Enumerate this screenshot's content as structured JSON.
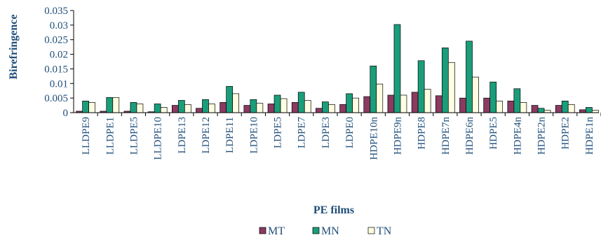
{
  "chart_data": {
    "type": "bar",
    "xlabel": "PE films",
    "ylabel": "Birefringence",
    "ylim": [
      0,
      0.035
    ],
    "yticks": [
      0,
      0.005,
      0.01,
      0.015,
      0.02,
      0.025,
      0.03,
      0.035
    ],
    "ytick_labels": [
      "0",
      "0.005",
      "0.01",
      "0.015",
      "0.02",
      "0.025",
      "0.03",
      "0.035"
    ],
    "grid": false,
    "legend_position": "bottom",
    "categories": [
      "LLDPE9",
      "LLDPE1",
      "LLDPE5",
      "LLDPE10",
      "LDPE13",
      "LDPE12",
      "LDPE11",
      "LDPE10",
      "LDPE5",
      "LDPE7",
      "LDPE3",
      "LDPE0",
      "HDPE10n",
      "HDPE9n",
      "HDPE8",
      "HDPE7n",
      "HDPE6n",
      "HDPE5",
      "HDPE4n",
      "HDPE2n",
      "HDPE2",
      "HDPE1n"
    ],
    "series": [
      {
        "name": "MT",
        "color": "#8b3a62",
        "values": [
          0.0005,
          0.0005,
          0.0005,
          0.0003,
          0.0025,
          0.0015,
          0.0035,
          0.0025,
          0.003,
          0.0035,
          0.0015,
          0.0028,
          0.0055,
          0.006,
          0.007,
          0.0058,
          0.005,
          0.005,
          0.004,
          0.0025,
          0.0025,
          0.001
        ]
      },
      {
        "name": "MN",
        "color": "#1a9e7a",
        "values": [
          0.004,
          0.0052,
          0.0035,
          0.003,
          0.0042,
          0.0045,
          0.009,
          0.0045,
          0.006,
          0.007,
          0.0037,
          0.0065,
          0.016,
          0.0302,
          0.0178,
          0.0222,
          0.0245,
          0.0105,
          0.0082,
          0.0015,
          0.004,
          0.0018
        ]
      },
      {
        "name": "TN",
        "color": "#fffde0",
        "values": [
          0.0035,
          0.0052,
          0.003,
          0.0018,
          0.0028,
          0.003,
          0.0065,
          0.0032,
          0.0048,
          0.0042,
          0.0028,
          0.005,
          0.0098,
          0.006,
          0.008,
          0.0172,
          0.0122,
          0.004,
          0.0035,
          0.0008,
          0.0028,
          0.0008
        ]
      }
    ]
  }
}
